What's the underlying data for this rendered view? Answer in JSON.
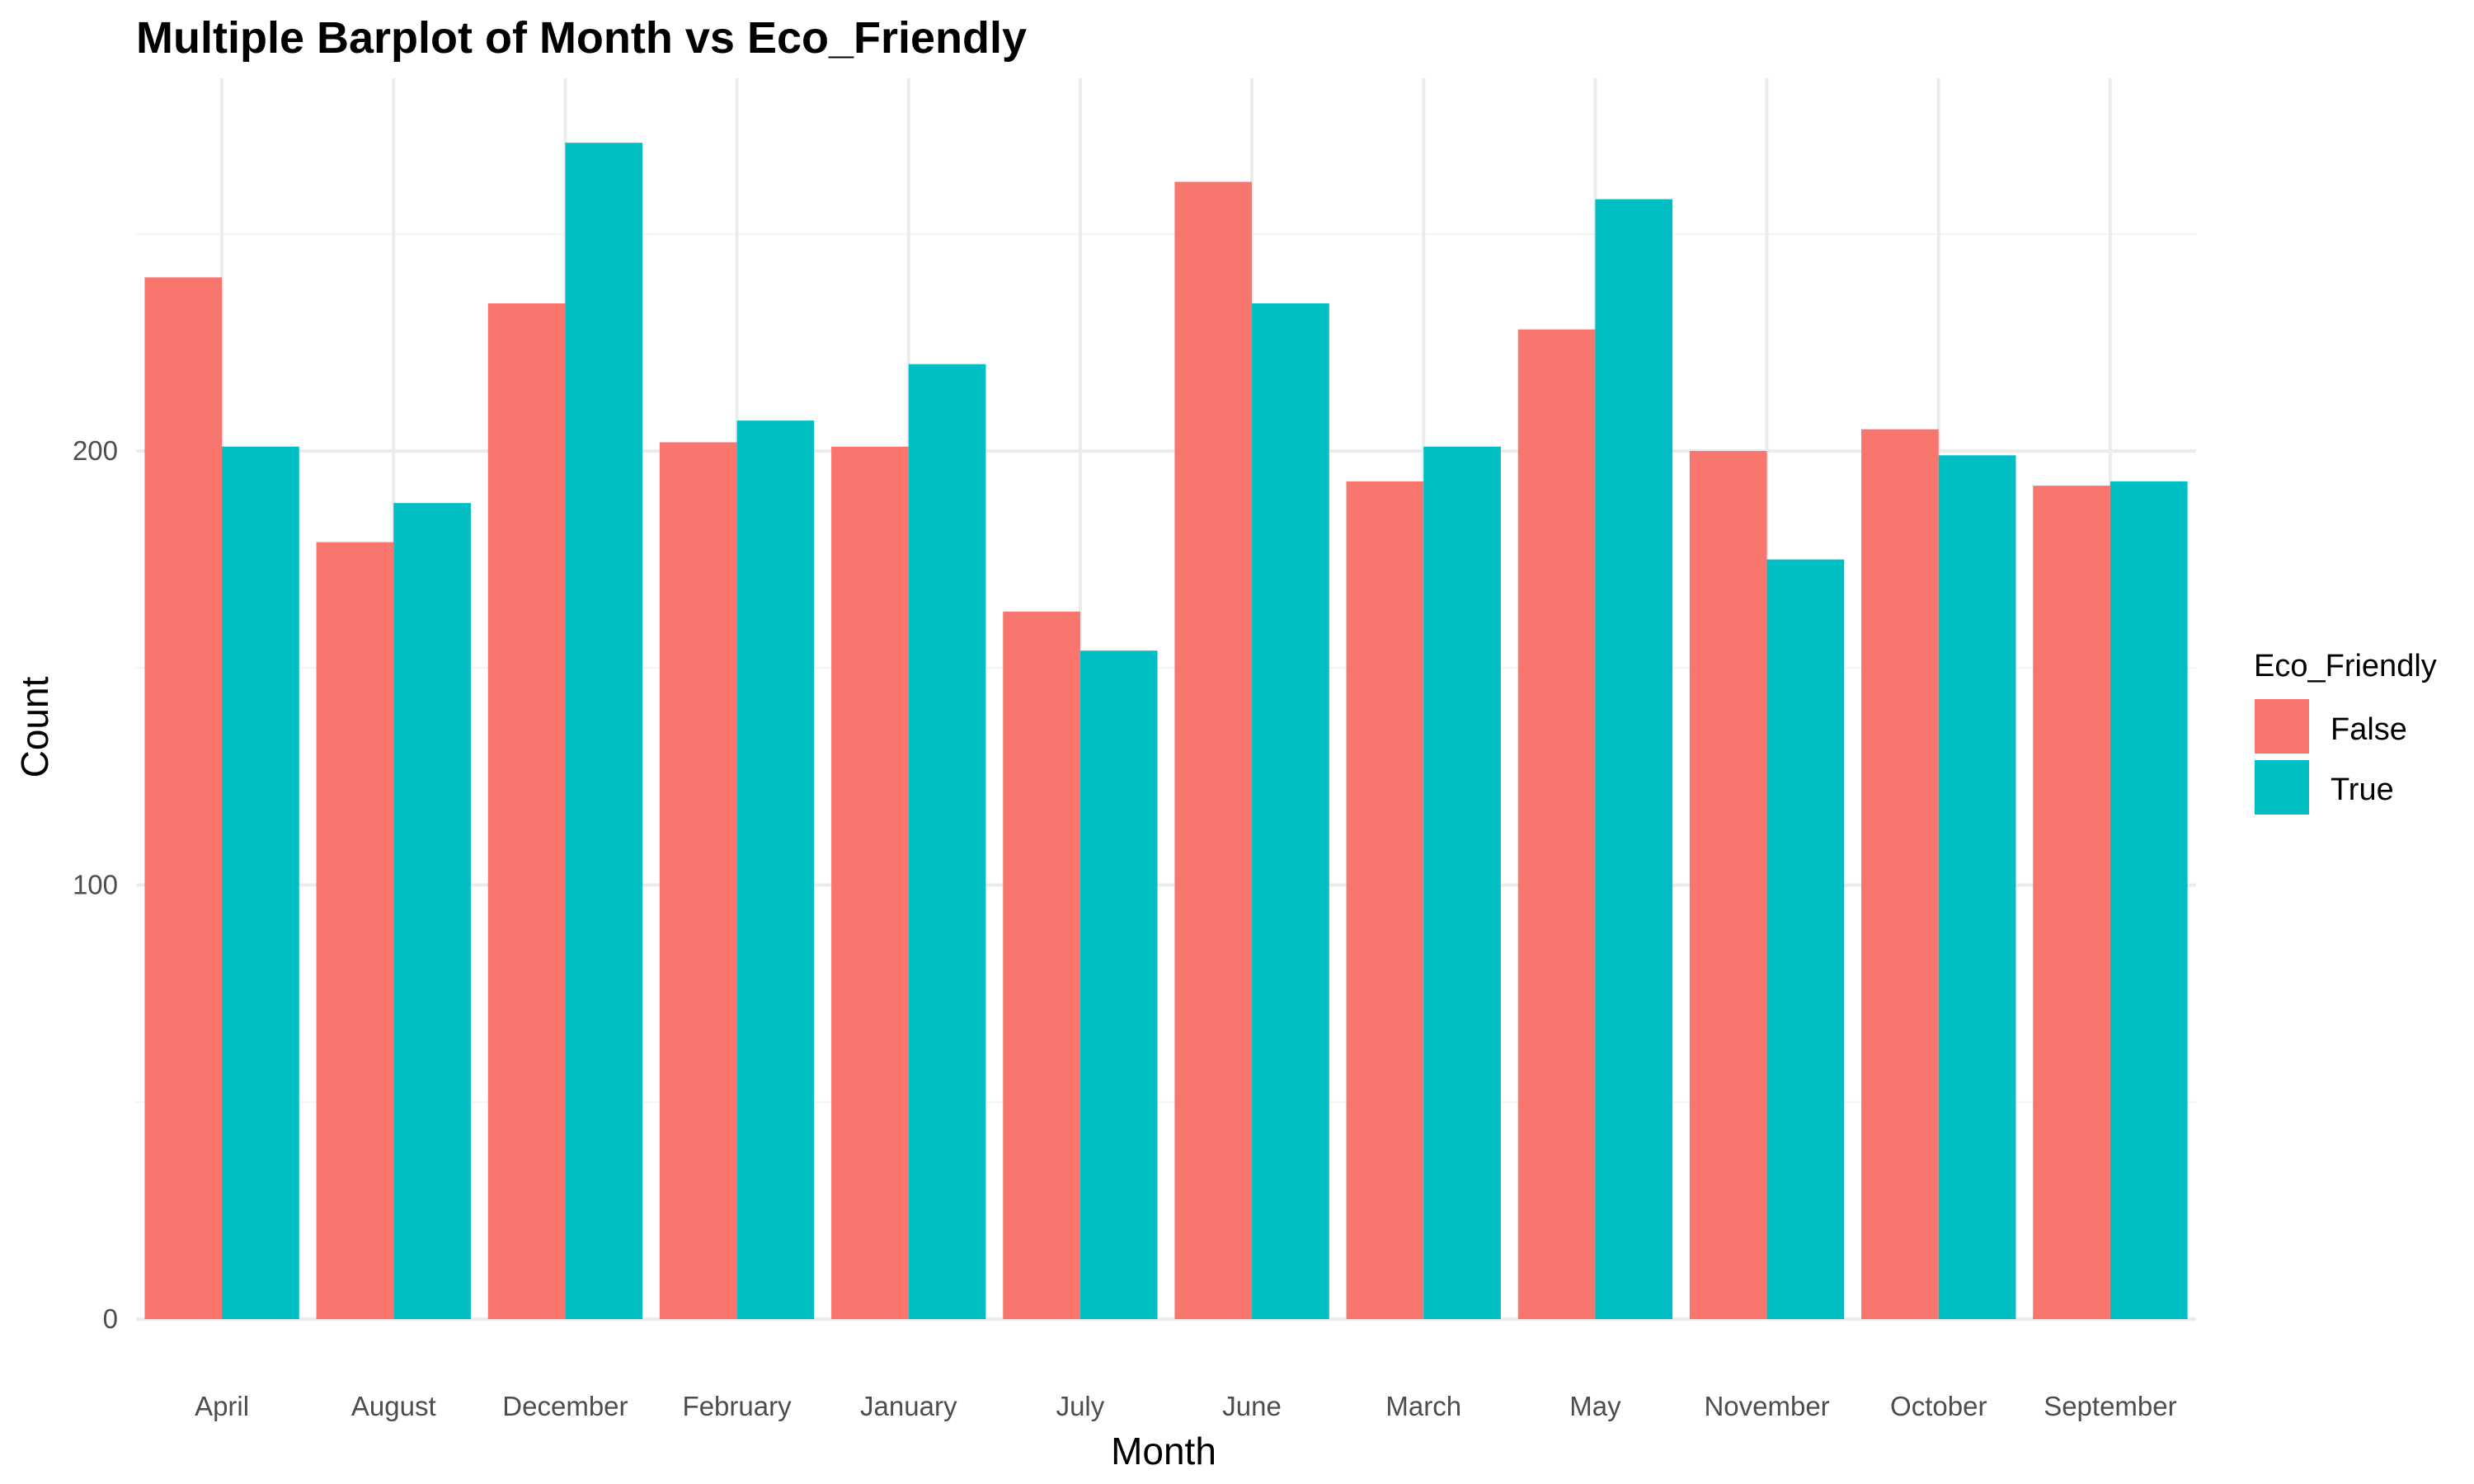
{
  "chart_data": {
    "type": "bar",
    "title": "Multiple Barplot of Month vs Eco_Friendly",
    "xlabel": "Month",
    "ylabel": "Count",
    "categories": [
      "April",
      "August",
      "December",
      "February",
      "January",
      "July",
      "June",
      "March",
      "May",
      "November",
      "October",
      "September"
    ],
    "series": [
      {
        "name": "False",
        "color": "#F8766D",
        "values": [
          240,
          179,
          234,
          202,
          201,
          163,
          262,
          193,
          228,
          200,
          205,
          192
        ]
      },
      {
        "name": "True",
        "color": "#00BFC4",
        "values": [
          201,
          188,
          271,
          207,
          220,
          154,
          234,
          201,
          258,
          175,
          199,
          193
        ]
      }
    ],
    "ylim": [
      0,
      271
    ],
    "y_ticks": [
      0,
      100,
      200
    ],
    "y_tick_labels": [
      "0",
      "100",
      "200"
    ],
    "grid": true,
    "legend": {
      "title": "Eco_Friendly",
      "position": "right",
      "entries": [
        "False",
        "True"
      ]
    }
  }
}
